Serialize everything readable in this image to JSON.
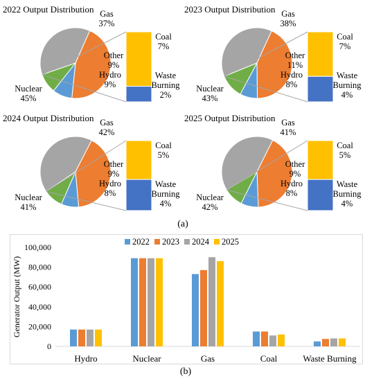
{
  "captions": {
    "a": "(a)",
    "b": "(b)"
  },
  "chart_data": [
    {
      "type": "pie",
      "title": "2022 Output Distribution",
      "categories": [
        "Gas",
        "Nuclear",
        "Hydro",
        "Other"
      ],
      "values": [
        37,
        45,
        9,
        9
      ],
      "labels": [
        "Gas\n37%",
        "Nuclear\n45%",
        "Hydro\n9%",
        "Other\n9%"
      ],
      "breakout": {
        "categories": [
          "Coal",
          "Waste Burning"
        ],
        "values": [
          7,
          2
        ],
        "labels": [
          "Coal\n7%",
          "Waste\nBurning\n2%"
        ]
      },
      "colors": [
        "#a5a5a5",
        "#ed7d31",
        "#5b9bd5",
        "#70ad47"
      ],
      "breakout_colors": [
        "#ffc000",
        "#4472c4"
      ]
    },
    {
      "type": "pie",
      "title": "2023 Output Distribution",
      "categories": [
        "Gas",
        "Nuclear",
        "Hydro",
        "Other"
      ],
      "values": [
        38,
        43,
        8,
        11
      ],
      "labels": [
        "Gas\n38%",
        "Nuclear\n43%",
        "Hydro\n8%",
        "Other\n11%"
      ],
      "breakout": {
        "categories": [
          "Coal",
          "Waste Burning"
        ],
        "values": [
          7,
          4
        ],
        "labels": [
          "Coal\n7%",
          "Waste\nBurning\n4%"
        ]
      },
      "colors": [
        "#a5a5a5",
        "#ed7d31",
        "#5b9bd5",
        "#70ad47"
      ],
      "breakout_colors": [
        "#ffc000",
        "#4472c4"
      ]
    },
    {
      "type": "pie",
      "title": "2024 Output Distribution",
      "categories": [
        "Gas",
        "Nuclear",
        "Hydro",
        "Other"
      ],
      "values": [
        42,
        41,
        8,
        9
      ],
      "labels": [
        "Gas\n42%",
        "Nuclear\n41%",
        "Hydro\n8%",
        "Other\n9%"
      ],
      "breakout": {
        "categories": [
          "Coal",
          "Waste Burning"
        ],
        "values": [
          5,
          4
        ],
        "labels": [
          "Coal\n5%",
          "Waste\nBurning\n4%"
        ]
      },
      "colors": [
        "#a5a5a5",
        "#ed7d31",
        "#5b9bd5",
        "#70ad47"
      ],
      "breakout_colors": [
        "#ffc000",
        "#4472c4"
      ]
    },
    {
      "type": "pie",
      "title": "2025 Output Distribution",
      "categories": [
        "Gas",
        "Nuclear",
        "Hydro",
        "Other"
      ],
      "values": [
        41,
        42,
        8,
        9
      ],
      "labels": [
        "Gas\n41%",
        "Nuclear\n42%",
        "Hydro\n8%",
        "Other\n9%"
      ],
      "breakout": {
        "categories": [
          "Coal",
          "Waste Burning"
        ],
        "values": [
          5,
          4
        ],
        "labels": [
          "Coal\n5%",
          "Waste\nBurning\n4%"
        ]
      },
      "colors": [
        "#a5a5a5",
        "#ed7d31",
        "#5b9bd5",
        "#70ad47"
      ],
      "breakout_colors": [
        "#ffc000",
        "#4472c4"
      ]
    },
    {
      "type": "bar",
      "title": "",
      "xlabel": "",
      "ylabel": "Generator Output (MW)",
      "categories": [
        "Hydro",
        "Nuclear",
        "Gas",
        "Coal",
        "Waste Burning"
      ],
      "series": [
        {
          "name": "2022",
          "color": "#5b9bd5",
          "values": [
            17000,
            89000,
            73000,
            15000,
            5000
          ]
        },
        {
          "name": "2023",
          "color": "#ed7d31",
          "values": [
            17000,
            89000,
            77000,
            15000,
            7500
          ]
        },
        {
          "name": "2024",
          "color": "#a5a5a5",
          "values": [
            17000,
            89000,
            90000,
            11000,
            8000
          ]
        },
        {
          "name": "2025",
          "color": "#ffc000",
          "values": [
            17000,
            89000,
            86000,
            12000,
            8000
          ]
        }
      ],
      "yticks": [
        "0",
        "20,000",
        "40,000",
        "60,000",
        "80,000",
        "100,000"
      ],
      "ylim": [
        0,
        100000
      ],
      "grid": false,
      "legend": "top"
    }
  ]
}
